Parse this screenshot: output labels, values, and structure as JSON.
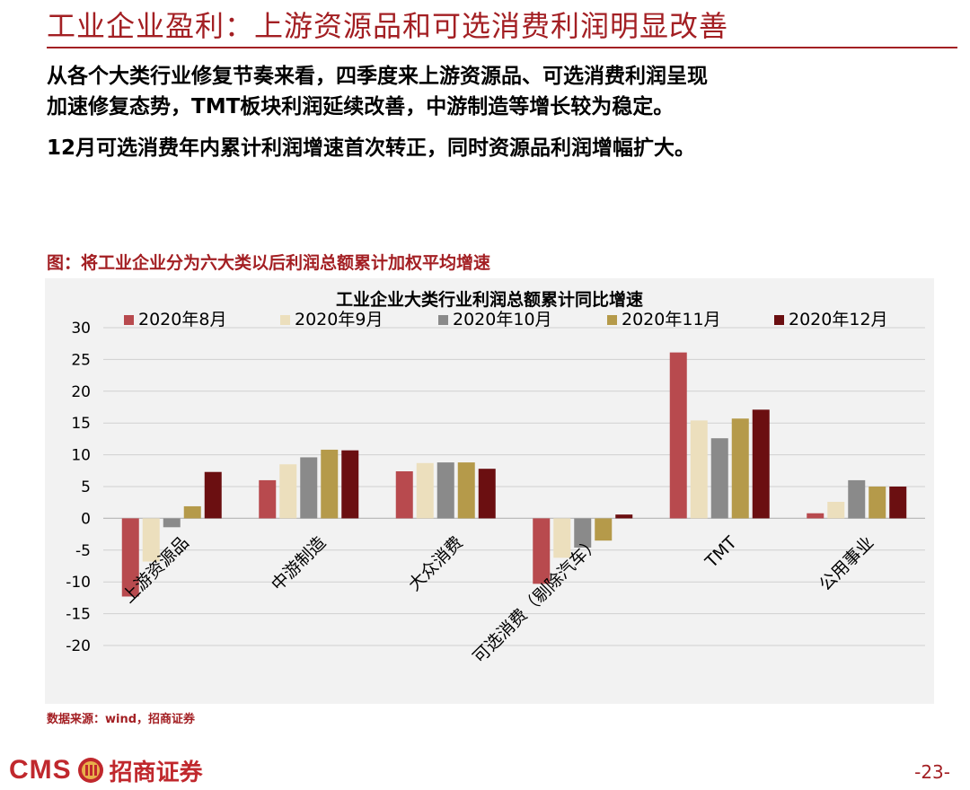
{
  "header": {
    "title": "工业企业盈利：上游资源品和可选消费利润明显改善"
  },
  "body": {
    "line1": "从各个大类行业修复节奏来看，四季度来上游资源品、可选消费利润呈现",
    "line2": "加速修复态势，TMT板块利润延续改善，中游制造等增长较为稳定。",
    "line3": "12月可选消费年内累计利润增速首次转正，同时资源品利润增幅扩大。"
  },
  "figure": {
    "caption": "图：将工业企业分为六大类以后利润总额累计加权平均增速",
    "source": "数据来源：wind，招商证券"
  },
  "footer": {
    "logo_text": "CMS",
    "logo_cn": "招商证券",
    "page": "-23-"
  },
  "chart_data": {
    "type": "bar",
    "title": "工业企业大类行业利润总额累计同比增速",
    "categories": [
      "上游资源品",
      "中游制造",
      "大众消费",
      "可选消费（剔除汽车）",
      "TMT",
      "公用事业"
    ],
    "series": [
      {
        "name": "2020年8月",
        "color": "#b84a4e",
        "values": [
          -12.3,
          6.0,
          7.4,
          -10.3,
          26.1,
          0.8
        ]
      },
      {
        "name": "2020年9月",
        "color": "#ecdfbd",
        "values": [
          -6.8,
          8.5,
          8.7,
          -6.2,
          15.4,
          2.6
        ]
      },
      {
        "name": "2020年10月",
        "color": "#8a8a8a",
        "values": [
          -1.4,
          9.6,
          8.8,
          -4.6,
          12.6,
          6.0
        ]
      },
      {
        "name": "2020年11月",
        "color": "#b59a4a",
        "values": [
          1.9,
          10.8,
          8.8,
          -3.5,
          15.7,
          5.0
        ]
      },
      {
        "name": "2020年12月",
        "color": "#6b0f11",
        "values": [
          7.3,
          10.7,
          7.8,
          0.6,
          17.1,
          5.0
        ]
      }
    ],
    "ylim": [
      -20,
      30
    ],
    "yticks": [
      30,
      25,
      20,
      15,
      10,
      5,
      0,
      -5,
      -10,
      -15,
      -20
    ],
    "grid": true,
    "legend": "top"
  }
}
